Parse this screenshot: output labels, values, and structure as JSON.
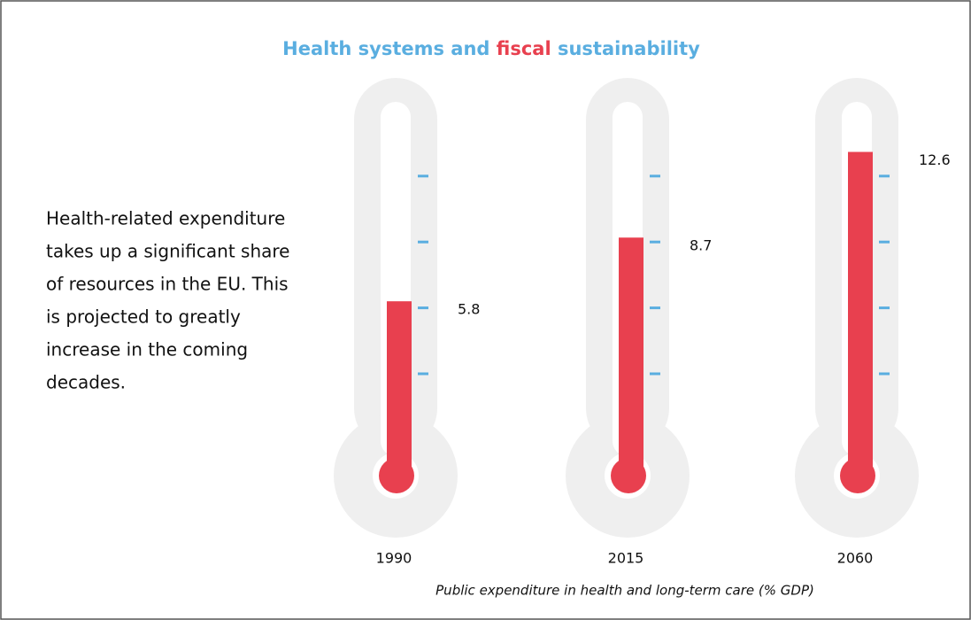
{
  "chart_data": {
    "type": "thermometer",
    "title_parts": [
      "Health systems and",
      "fiscal",
      "sustainability"
    ],
    "title_colors": [
      "#5aaee0",
      "#e8404f",
      "#5aaee0"
    ],
    "description": [
      "Health-related expenditure",
      "takes up a significant share",
      "of resources in the EU. This",
      "is projected to greatly",
      "increase in the coming",
      "decades."
    ],
    "note": "Public expenditure in health and long-term care (% GDP)",
    "categories": [
      "1990",
      "2015",
      "2060"
    ],
    "values": [
      5.8,
      8.7,
      12.6
    ],
    "color": "#e8404f",
    "tube_color": "#efefef",
    "tick_color": "#5aaee0",
    "ylim": [
      0,
      15
    ],
    "yticks": [
      2.5,
      5.5,
      8.5,
      11.5
    ]
  }
}
